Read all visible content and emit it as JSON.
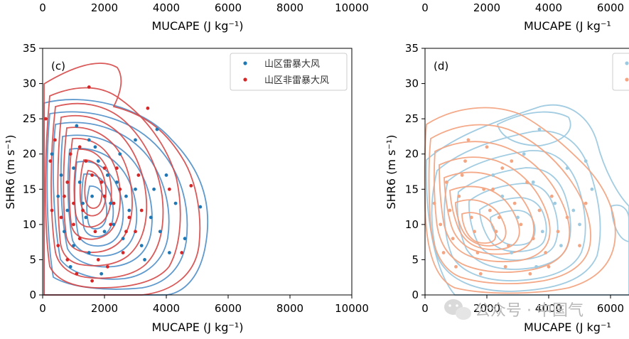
{
  "top_strip": {
    "left_ticks": [
      "0",
      "2000",
      "4000",
      "6000",
      "8000",
      "10000"
    ],
    "left_xlabel": "MUCAPE (J kg⁻¹)",
    "right_ticks": [
      "0",
      "2000",
      "4000",
      "6000"
    ],
    "right_xlabel": "MUCAPE (J kg⁻¹"
  },
  "watermark": "公众号 · 中国气",
  "colors": {
    "c_series1": "#1f77b4",
    "c_series2": "#d62728",
    "c_contour1": "#4f8fc8",
    "c_contour2": "#d64848",
    "d_series1": "#9ecae1",
    "d_series2": "#f4a582"
  },
  "chart_data": [
    {
      "type": "scatter",
      "panel": "(c)",
      "xlabel": "MUCAPE (J kg⁻¹)",
      "ylabel": "SHR6 (m s⁻¹)",
      "xlim": [
        0,
        10000
      ],
      "ylim": [
        0,
        35
      ],
      "xticks": [
        "0",
        "2000",
        "4000",
        "6000",
        "8000",
        "10000"
      ],
      "yticks": [
        "0",
        "5",
        "10",
        "15",
        "20",
        "25",
        "30",
        "35"
      ],
      "legend": "top-right",
      "overlay": "kernel density contours per series",
      "series": [
        {
          "name": "山区雷暴大风",
          "color": "#1f77b4",
          "points": [
            [
              300,
              20
            ],
            [
              500,
              14
            ],
            [
              800,
              12
            ],
            [
              1000,
              18
            ],
            [
              1200,
              16
            ],
            [
              1400,
              11
            ],
            [
              1600,
              14
            ],
            [
              1800,
              19
            ],
            [
              2000,
              9
            ],
            [
              2200,
              13
            ],
            [
              2400,
              16
            ],
            [
              2600,
              8
            ],
            [
              2800,
              12
            ],
            [
              3000,
              15
            ],
            [
              3200,
              7
            ],
            [
              3500,
              11
            ],
            [
              3800,
              9
            ],
            [
              4000,
              17
            ],
            [
              4300,
              13
            ],
            [
              4600,
              8
            ],
            [
              5100,
              12.5
            ],
            [
              3000,
              22
            ],
            [
              1500,
              6
            ],
            [
              900,
              4
            ],
            [
              2500,
              20
            ],
            [
              1100,
              24
            ],
            [
              700,
              9
            ],
            [
              1900,
              3
            ],
            [
              2100,
              17
            ],
            [
              1700,
              21
            ],
            [
              3300,
              5
            ],
            [
              1300,
              13
            ],
            [
              600,
              17
            ],
            [
              2300,
              10
            ],
            [
              4100,
              6
            ],
            [
              1000,
              7
            ],
            [
              2700,
              14
            ],
            [
              3600,
              15
            ],
            [
              1500,
              22
            ],
            [
              3700,
              23.5
            ]
          ]
        },
        {
          "name": "山区非雷暴大风",
          "color": "#d62728",
          "points": [
            [
              100,
              25
            ],
            [
              250,
              19
            ],
            [
              400,
              22
            ],
            [
              600,
              11
            ],
            [
              800,
              16
            ],
            [
              1000,
              13
            ],
            [
              1200,
              8
            ],
            [
              1400,
              19
            ],
            [
              1600,
              17
            ],
            [
              1800,
              5
            ],
            [
              2000,
              14
            ],
            [
              2200,
              10
            ],
            [
              2400,
              18
            ],
            [
              2600,
              6
            ],
            [
              2800,
              11
            ],
            [
              3000,
              9
            ],
            [
              3200,
              12
            ],
            [
              3400,
              26.5
            ],
            [
              4800,
              15.5
            ],
            [
              4500,
              6
            ],
            [
              4100,
              15
            ],
            [
              1500,
              29.5
            ],
            [
              700,
              14
            ],
            [
              900,
              20
            ],
            [
              1100,
              3
            ],
            [
              1300,
              12
            ],
            [
              1700,
              9
            ],
            [
              1900,
              16
            ],
            [
              2100,
              4
            ],
            [
              2300,
              13
            ],
            [
              2500,
              15
            ],
            [
              500,
              7
            ],
            [
              300,
              12
            ],
            [
              1000,
              10
            ],
            [
              1600,
              2
            ],
            [
              2000,
              18
            ],
            [
              1200,
              21
            ],
            [
              800,
              5
            ],
            [
              2700,
              9
            ],
            [
              3100,
              17
            ]
          ]
        }
      ]
    },
    {
      "type": "scatter",
      "panel": "(d)",
      "xlabel": "MUCAPE (J kg⁻¹",
      "ylabel": "SHR6 (m s⁻¹)",
      "xlim": [
        0,
        7000
      ],
      "ylim": [
        0,
        35
      ],
      "xticks": [
        "0",
        "2000",
        "4000",
        "6000"
      ],
      "yticks": [
        "0",
        "5",
        "10",
        "15",
        "20",
        "25",
        "30",
        "35"
      ],
      "legend": "top-right",
      "overlay": "kernel density contours per series",
      "series": [
        {
          "name": "",
          "color": "#9ecae1",
          "points": [
            [
              2500,
              14
            ],
            [
              3000,
              11
            ],
            [
              3500,
              16
            ],
            [
              3800,
              9
            ],
            [
              4200,
              13
            ],
            [
              4600,
              18
            ],
            [
              5000,
              10
            ],
            [
              5400,
              15
            ],
            [
              3700,
              23.5
            ],
            [
              2800,
              6
            ],
            [
              3200,
              20
            ],
            [
              4400,
              7
            ],
            [
              2200,
              17
            ],
            [
              4800,
              12
            ],
            [
              3600,
              4
            ],
            [
              5200,
              19
            ]
          ]
        },
        {
          "name": "",
          "color": "#f4a582",
          "points": [
            [
              300,
              13
            ],
            [
              500,
              10
            ],
            [
              700,
              16
            ],
            [
              900,
              8
            ],
            [
              1100,
              14
            ],
            [
              1300,
              19
            ],
            [
              1500,
              11
            ],
            [
              1700,
              6
            ],
            [
              1900,
              15
            ],
            [
              2100,
              12
            ],
            [
              2300,
              9
            ],
            [
              2500,
              18
            ],
            [
              2700,
              7
            ],
            [
              2900,
              13
            ],
            [
              3100,
              10
            ],
            [
              3300,
              16
            ],
            [
              3500,
              8
            ],
            [
              3700,
              12
            ],
            [
              3900,
              6
            ],
            [
              4100,
              14
            ],
            [
              4300,
              9
            ],
            [
              4600,
              11
            ],
            [
              5000,
              7
            ],
            [
              1400,
              22
            ],
            [
              2000,
              21
            ],
            [
              1000,
              4
            ],
            [
              1800,
              3
            ],
            [
              2600,
              4
            ],
            [
              600,
              6
            ],
            [
              3400,
              3
            ],
            [
              1200,
              17
            ],
            [
              2200,
              15
            ],
            [
              800,
              12
            ],
            [
              1600,
              9
            ],
            [
              2400,
              11
            ],
            [
              5200,
              13
            ],
            [
              2800,
              19
            ],
            [
              4000,
              4
            ]
          ]
        }
      ]
    }
  ]
}
